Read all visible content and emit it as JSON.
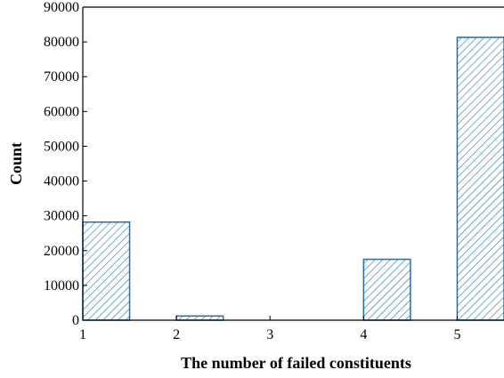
{
  "chart_data": {
    "type": "bar",
    "x": [
      1,
      2,
      3,
      4,
      5
    ],
    "values": [
      28200,
      1200,
      0,
      17500,
      81300
    ],
    "bar_start_offset": 0,
    "bar_width": 0.5,
    "xlabel": "The number of failed constituents",
    "ylabel": "Count",
    "xlim": [
      1,
      5.5
    ],
    "ylim": [
      0,
      90000
    ],
    "xticks": [
      "1",
      "2",
      "3",
      "4",
      "5"
    ],
    "yticks": [
      "0",
      "10000",
      "20000",
      "30000",
      "40000",
      "50000",
      "60000",
      "70000",
      "80000",
      "90000"
    ],
    "grid": false,
    "bar_fill": "hatched",
    "colors": {
      "bar_stroke": "#1f6fb0",
      "hatch": "#1f6fb0",
      "axis": "#000000"
    }
  }
}
